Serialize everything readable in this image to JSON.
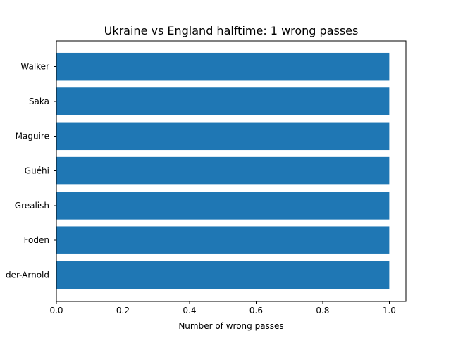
{
  "chart_data": {
    "type": "bar",
    "orientation": "horizontal",
    "title": "Ukraine vs England halftime: 1 wrong passes",
    "xlabel": "Number of wrong passes",
    "ylabel": "",
    "categories": [
      "Alexander-Arnold",
      "Foden",
      "Grealish",
      "Guéhi",
      "Maguire",
      "Saka",
      "Walker"
    ],
    "visible_tick_labels": [
      "der-Arnold",
      "Foden",
      "Grealish",
      "Guéhi",
      "Maguire",
      "Saka",
      "Walker"
    ],
    "values": [
      1,
      1,
      1,
      1,
      1,
      1,
      1
    ],
    "xlim": [
      0,
      1.05
    ],
    "xticks": [
      "0.0",
      "0.2",
      "0.4",
      "0.6",
      "0.8",
      "1.0"
    ],
    "xtick_values": [
      0,
      0.2,
      0.4,
      0.6,
      0.8,
      1.0
    ],
    "bar_color": "#1f77b4",
    "grid": false,
    "legend": "none"
  }
}
